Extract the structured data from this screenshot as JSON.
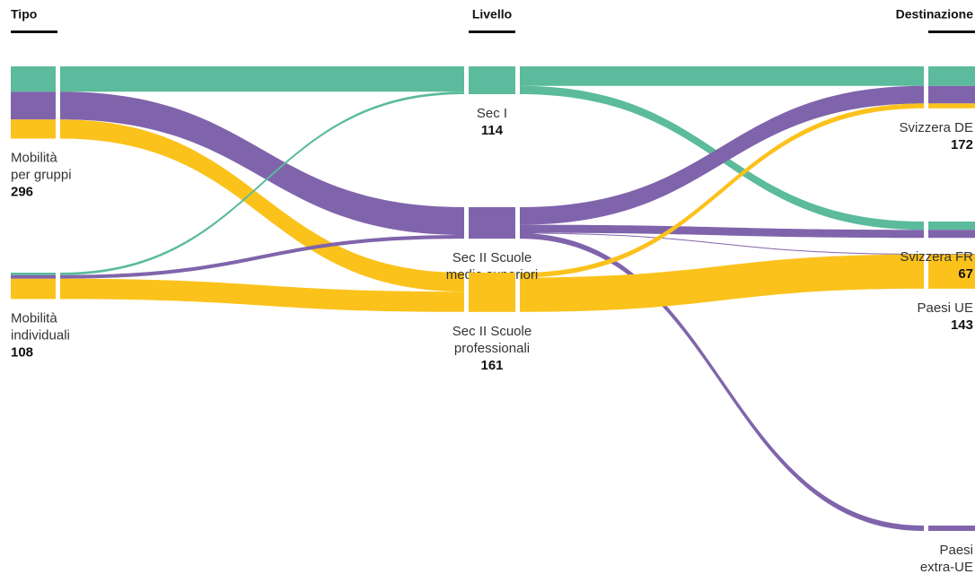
{
  "chart_data": {
    "type": "sankey",
    "columns": [
      "Tipo",
      "Livello",
      "Destinazione"
    ],
    "nodes": [
      {
        "label": [
          "Mobilità",
          "per gruppi"
        ],
        "value": 296,
        "column": 0
      },
      {
        "label": [
          "Mobilità",
          "individuali"
        ],
        "value": 108,
        "column": 0
      },
      {
        "label": [
          "Sec I"
        ],
        "value": 114,
        "column": 1,
        "color": "#5bbb9c"
      },
      {
        "label": [
          "Sec II Scuole",
          "medie superiori"
        ],
        "value": 129,
        "column": 1,
        "color": "#8064ab"
      },
      {
        "label": [
          "Sec II Scuole",
          "professionali"
        ],
        "value": 161,
        "column": 1,
        "color": "#fbc21c"
      },
      {
        "label": [
          "Svizzera DE"
        ],
        "value": 172,
        "column": 2
      },
      {
        "label": [
          "Svizzera FR"
        ],
        "value": 67,
        "column": 2
      },
      {
        "label": [
          "Paesi UE"
        ],
        "value": 143,
        "column": 2
      },
      {
        "label": [
          "Paesi",
          "extra-UE"
        ],
        "value": 22,
        "column": 2
      }
    ],
    "links": [
      {
        "source": 0,
        "target": 2,
        "value": 104,
        "color": "#5bbb9c"
      },
      {
        "source": 0,
        "target": 3,
        "value": 114,
        "color": "#8064ab"
      },
      {
        "source": 0,
        "target": 4,
        "value": 78,
        "color": "#fbc21c"
      },
      {
        "source": 1,
        "target": 2,
        "value": 10,
        "color": "#5bbb9c"
      },
      {
        "source": 1,
        "target": 3,
        "value": 15,
        "color": "#8064ab"
      },
      {
        "source": 1,
        "target": 4,
        "value": 83,
        "color": "#fbc21c"
      },
      {
        "source": 2,
        "target": 5,
        "value": 80,
        "color": "#5bbb9c"
      },
      {
        "source": 2,
        "target": 6,
        "value": 34,
        "color": "#5bbb9c"
      },
      {
        "source": 3,
        "target": 5,
        "value": 72,
        "color": "#8064ab"
      },
      {
        "source": 3,
        "target": 6,
        "value": 33,
        "color": "#8064ab"
      },
      {
        "source": 3,
        "target": 7,
        "value": 2,
        "color": "#8064ab"
      },
      {
        "source": 3,
        "target": 8,
        "value": 22,
        "color": "#8064ab"
      },
      {
        "source": 4,
        "target": 5,
        "value": 20,
        "color": "#fbc21c"
      },
      {
        "source": 4,
        "target": 7,
        "value": 141,
        "color": "#fbc21c"
      }
    ]
  }
}
